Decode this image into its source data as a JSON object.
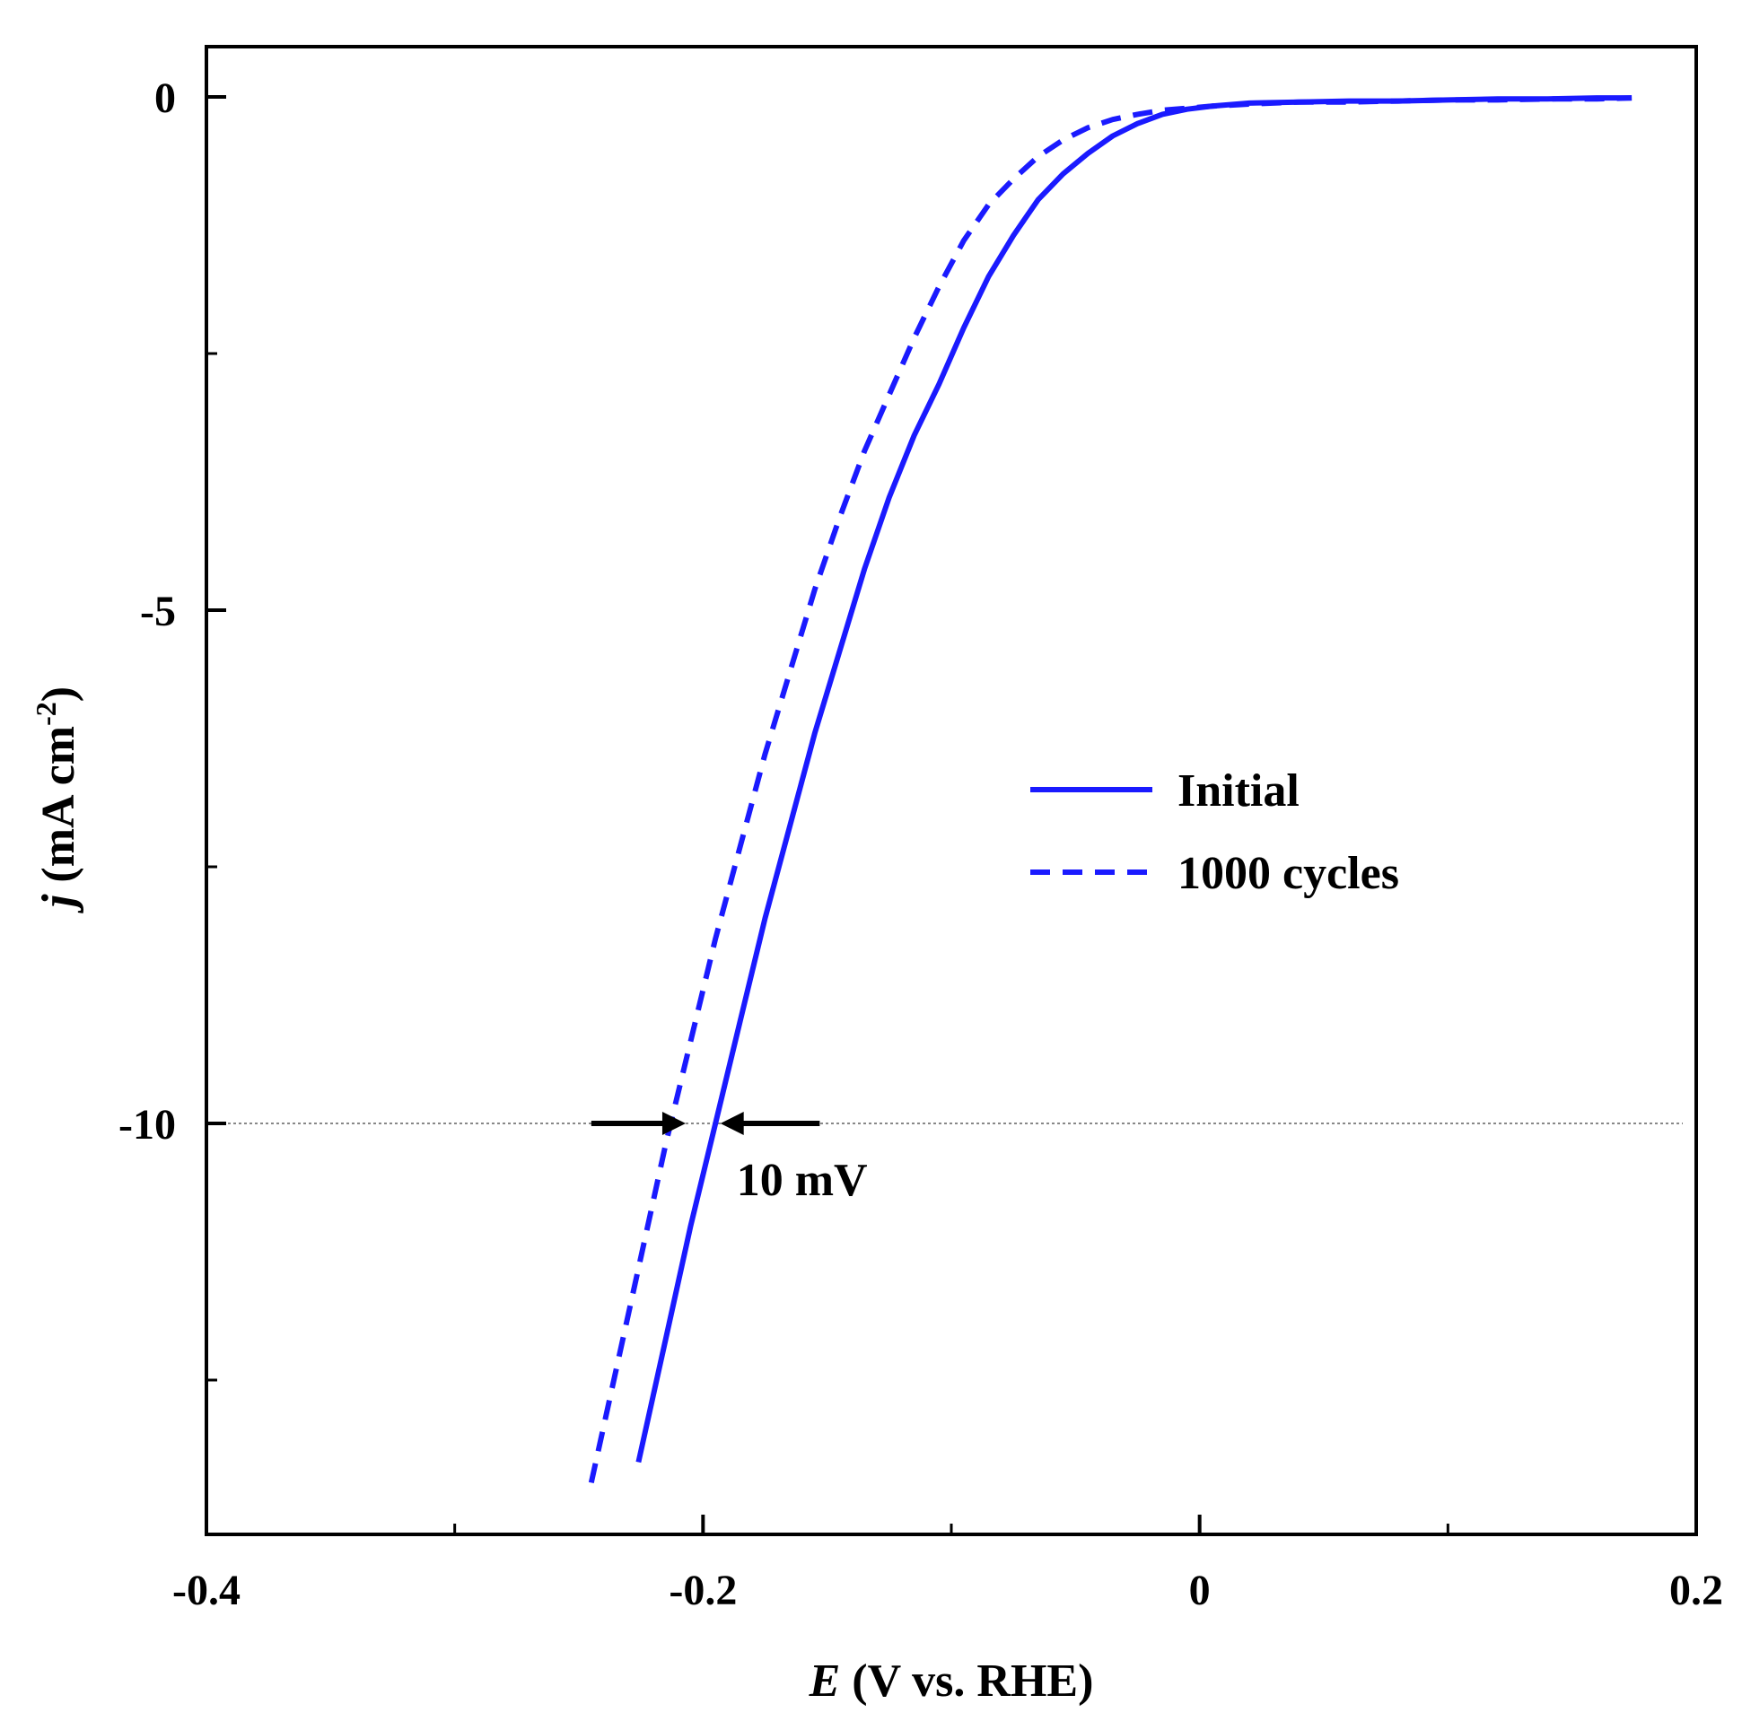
{
  "chart_data": {
    "type": "line",
    "title": "",
    "xlabel_var": "E",
    "xlabel_rest": " (V vs. RHE)",
    "ylabel_var": "j",
    "ylabel_rest": " (mA cm",
    "ylabel_sup": "-2",
    "ylabel_close": ")",
    "xlim": [
      -0.4,
      0.2
    ],
    "ylim": [
      -14.5,
      1.0
    ],
    "x_ticks_major": [
      -0.4,
      -0.2,
      0,
      0.2
    ],
    "x_tick_labels": [
      "-0.4",
      "-0.2",
      "0",
      "0.2"
    ],
    "x_ticks_minor": [
      -0.3,
      -0.1,
      0.1
    ],
    "y_ticks_major": [
      0,
      -5,
      -10
    ],
    "y_tick_labels": [
      "0",
      "-5",
      "-10"
    ],
    "y_ticks_minor": [
      -2.5,
      -7.5,
      -12.5
    ],
    "reference_line": {
      "y": -10,
      "style": "dotted",
      "color": "#888888"
    },
    "legend_position": "center-right",
    "series": [
      {
        "name": "Initial",
        "style": "solid",
        "color": "#1a1aff",
        "x": [
          -0.226,
          -0.215,
          -0.205,
          -0.195,
          -0.185,
          -0.175,
          -0.165,
          -0.155,
          -0.145,
          -0.135,
          -0.125,
          -0.115,
          -0.105,
          -0.095,
          -0.085,
          -0.075,
          -0.065,
          -0.055,
          -0.045,
          -0.035,
          -0.025,
          -0.015,
          -0.005,
          0.005,
          0.02,
          0.04,
          0.06,
          0.08,
          0.1,
          0.12,
          0.14,
          0.16,
          0.174
        ],
        "y": [
          -13.3,
          -12.1,
          -11.0,
          -10.0,
          -9.0,
          -8.0,
          -7.1,
          -6.2,
          -5.4,
          -4.6,
          -3.9,
          -3.3,
          -2.8,
          -2.25,
          -1.75,
          -1.35,
          -1.0,
          -0.75,
          -0.55,
          -0.38,
          -0.26,
          -0.17,
          -0.12,
          -0.09,
          -0.06,
          -0.05,
          -0.04,
          -0.04,
          -0.03,
          -0.02,
          -0.02,
          -0.01,
          -0.01
        ]
      },
      {
        "name": "1000 cycles",
        "style": "dashed",
        "color": "#1a1aff",
        "x": [
          -0.245,
          -0.235,
          -0.225,
          -0.215,
          -0.205,
          -0.195,
          -0.185,
          -0.175,
          -0.165,
          -0.155,
          -0.145,
          -0.135,
          -0.125,
          -0.115,
          -0.105,
          -0.095,
          -0.085,
          -0.075,
          -0.065,
          -0.055,
          -0.045,
          -0.035,
          -0.025,
          -0.015,
          -0.005,
          0.005,
          0.02,
          0.04,
          0.06,
          0.08,
          0.1,
          0.12,
          0.14,
          0.16,
          0.174
        ],
        "y": [
          -13.5,
          -12.4,
          -11.3,
          -10.2,
          -9.2,
          -8.2,
          -7.3,
          -6.4,
          -5.6,
          -4.8,
          -4.1,
          -3.45,
          -2.9,
          -2.35,
          -1.85,
          -1.4,
          -1.05,
          -0.8,
          -0.58,
          -0.42,
          -0.3,
          -0.22,
          -0.17,
          -0.13,
          -0.11,
          -0.09,
          -0.07,
          -0.05,
          -0.05,
          -0.04,
          -0.03,
          -0.03,
          -0.02,
          -0.02,
          -0.01
        ]
      }
    ],
    "annotation": {
      "text": "10 mV",
      "at_y": -10,
      "left_x": -0.207,
      "right_x": -0.193,
      "left_tail_x": -0.245,
      "right_tail_x": -0.153
    }
  }
}
